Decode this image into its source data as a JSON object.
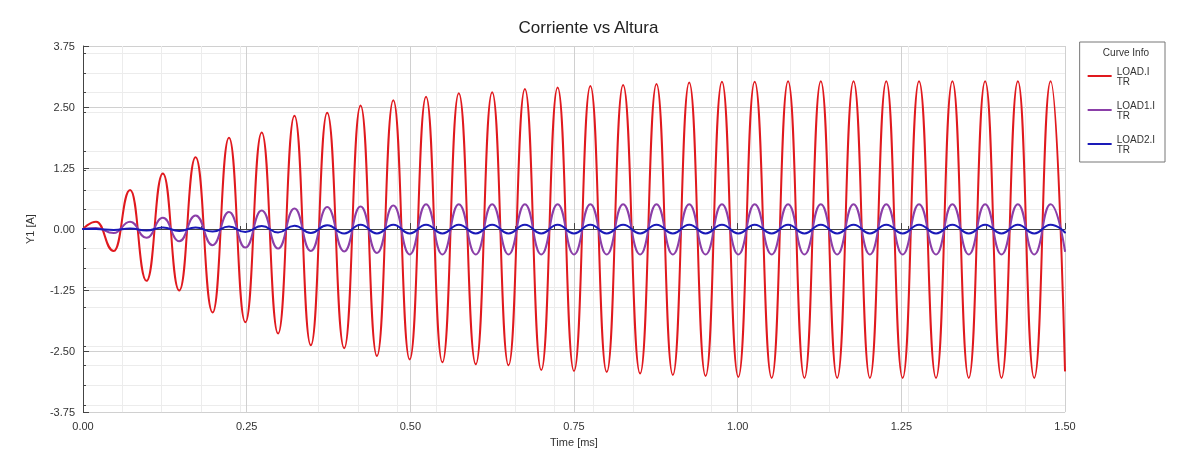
{
  "chart_data": {
    "type": "line",
    "title": "Corriente vs Altura",
    "xlabel": "Time [ms]",
    "ylabel": "Y1 [A]",
    "legend_title": "Curve Info",
    "legend": "top right",
    "grid": true,
    "marker": "none",
    "line_style": "solid",
    "xlim": [
      0,
      1.5
    ],
    "xticks": [
      {
        "value": 0,
        "label": "0.00"
      },
      {
        "value": 0.25,
        "label": "0.25"
      },
      {
        "value": 0.5,
        "label": "0.50"
      },
      {
        "value": 0.75,
        "label": "0.75"
      },
      {
        "value": 1,
        "label": "1.00"
      },
      {
        "value": 1.25,
        "label": "1.25"
      },
      {
        "value": 1.5,
        "label": "1.50"
      }
    ],
    "ylim": [
      -3.75,
      3.75
    ],
    "yticks": [
      {
        "value": -3.75,
        "label": "-3.75"
      },
      {
        "value": -2.5,
        "label": "-2.50"
      },
      {
        "value": -1.25,
        "label": "-1.25"
      },
      {
        "value": 0,
        "label": "0.00"
      },
      {
        "value": 1.25,
        "label": "1.25"
      },
      {
        "value": 2.5,
        "label": "2.50"
      },
      {
        "value": 3.75,
        "label": "3.75"
      }
    ],
    "x": [
      0,
      0.02,
      0.047,
      0.072,
      0.097,
      0.122,
      0.147,
      0.172,
      0.198,
      0.223,
      0.248,
      0.273,
      0.298,
      0.323,
      0.348,
      0.373,
      0.399,
      0.424,
      0.449,
      0.474,
      0.499,
      0.524,
      0.549,
      0.574,
      0.6,
      0.625,
      0.65,
      0.675,
      0.7,
      0.725,
      0.75,
      0.775,
      0.8,
      0.825,
      0.851,
      0.876,
      0.901,
      0.926,
      0.951,
      0.976,
      1.001,
      1.026,
      1.052,
      1.077,
      1.102,
      1.127,
      1.152,
      1.177,
      1.202,
      1.227,
      1.252,
      1.277,
      1.303,
      1.328,
      1.353,
      1.378,
      1.403,
      1.428,
      1.453,
      1.478,
      1.5
    ],
    "series": [
      {
        "name": "LOAD.I\nTR",
        "color": "#e0191e",
        "values": [
          0,
          0.15,
          -0.45,
          0.8,
          -1.06,
          1.14,
          -1.26,
          1.47,
          -1.71,
          1.87,
          -1.91,
          1.98,
          -2.14,
          2.32,
          -2.38,
          2.38,
          -2.44,
          2.53,
          -2.6,
          2.64,
          -2.67,
          2.71,
          -2.73,
          2.78,
          -2.77,
          2.8,
          -2.79,
          2.87,
          -2.89,
          2.9,
          -2.91,
          2.93,
          -2.93,
          2.95,
          -2.96,
          2.97,
          -2.99,
          3.0,
          -3.01,
          3.02,
          -3.03,
          3.02,
          -3.05,
          3.03,
          -3.05,
          3.03,
          -3.05,
          3.03,
          -3.05,
          3.03,
          -3.05,
          3.03,
          -3.05,
          3.03,
          -3.05,
          3.03,
          -3.05,
          3.03,
          -3.05,
          3.03,
          -2.9
        ]
      },
      {
        "name": "LOAD1.I\nTR",
        "color": "#8b3fa8",
        "values": [
          0,
          0.02,
          -0.08,
          0.15,
          -0.18,
          0.23,
          -0.25,
          0.28,
          -0.33,
          0.35,
          -0.38,
          0.38,
          -0.4,
          0.42,
          -0.45,
          0.45,
          -0.46,
          0.46,
          -0.49,
          0.48,
          -0.52,
          0.51,
          -0.52,
          0.51,
          -0.52,
          0.51,
          -0.52,
          0.51,
          -0.52,
          0.51,
          -0.52,
          0.51,
          -0.52,
          0.51,
          -0.52,
          0.51,
          -0.52,
          0.51,
          -0.52,
          0.51,
          -0.52,
          0.51,
          -0.52,
          0.51,
          -0.52,
          0.51,
          -0.52,
          0.51,
          -0.52,
          0.51,
          -0.52,
          0.51,
          -0.52,
          0.51,
          -0.52,
          0.51,
          -0.52,
          0.51,
          -0.52,
          0.51,
          -0.45
        ]
      },
      {
        "name": "LOAD2.I\nTR",
        "color": "#1a1ab8",
        "values": [
          0,
          0,
          -0.02,
          0.01,
          -0.03,
          0.03,
          -0.04,
          0.03,
          -0.05,
          0.05,
          -0.06,
          0.06,
          -0.07,
          0.07,
          -0.08,
          0.08,
          -0.09,
          0.09,
          -0.09,
          0.09,
          -0.09,
          0.09,
          -0.09,
          0.09,
          -0.09,
          0.09,
          -0.09,
          0.09,
          -0.09,
          0.09,
          -0.09,
          0.09,
          -0.09,
          0.09,
          -0.09,
          0.09,
          -0.09,
          0.09,
          -0.09,
          0.09,
          -0.09,
          0.09,
          -0.09,
          0.09,
          -0.09,
          0.09,
          -0.09,
          0.09,
          -0.09,
          0.09,
          -0.09,
          0.09,
          -0.09,
          0.09,
          -0.09,
          0.09,
          -0.09,
          0.09,
          -0.09,
          0.09,
          -0.07
        ]
      }
    ]
  }
}
